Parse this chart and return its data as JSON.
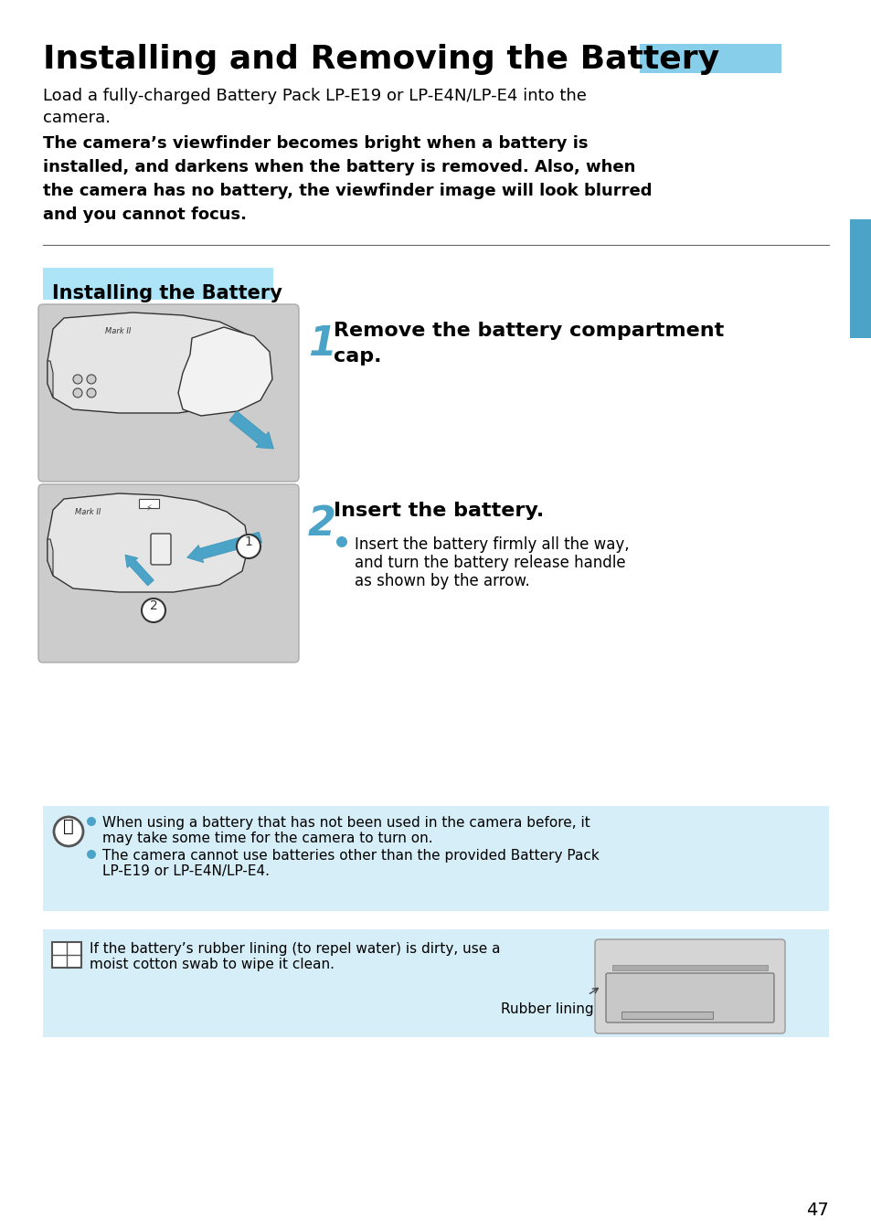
{
  "title": "Installing and Removing the Battery",
  "header_bar_color": "#87CEEB",
  "sidebar_color": "#4BA3C7",
  "bg_color": "#ffffff",
  "text_color": "#000000",
  "section_title": "Installing the Battery",
  "section_bg": "#AEE4F8",
  "step1_title_line1": "Remove the battery compartment",
  "step1_title_line2": "cap.",
  "step2_title": "Insert the battery.",
  "step2_b1": "Insert the battery firmly all the way,",
  "step2_b2": "and turn the battery release handle",
  "step2_b3": "as shown by the arrow.",
  "note1_b1_l1": "When using a battery that has not been used in the camera before, it",
  "note1_b1_l2": "may take some time for the camera to turn on.",
  "note1_b2_l1": "The camera cannot use batteries other than the provided Battery Pack",
  "note1_b2_l2": "LP-E19 or LP-E4N/LP-E4.",
  "note2_l1": "If the battery’s rubber lining (to repel water) is dirty, use a",
  "note2_l2": "moist cotton swab to wipe it clean.",
  "rubber_label": "Rubber lining",
  "note_bg": "#D6EEF8",
  "page_number": "47",
  "image_bg": "#CCCCCC",
  "bullet_color": "#4BA3C7",
  "step_num_color": "#4BA3C7",
  "title_fontsize": 26,
  "body_fontsize": 13,
  "bold_fontsize": 13,
  "step_title_fontsize": 16,
  "step_num_fontsize": 32,
  "small_fontsize": 11,
  "section_fontsize": 15,
  "intro_l1": "Load a fully-charged Battery Pack LP-E19 or LP-E4N/LP-E4 into the",
  "intro_l2": "camera.",
  "warn_l1": "The camera’s viewfinder becomes bright when a battery is",
  "warn_l2": "installed, and darkens when the battery is removed. Also, when",
  "warn_l3": "the camera has no battery, the viewfinder image will look blurred",
  "warn_l4": "and you cannot focus."
}
